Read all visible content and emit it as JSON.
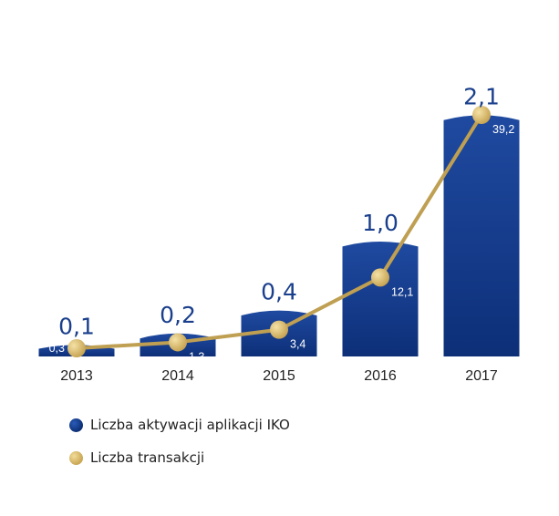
{
  "chart_data": {
    "type": "bar",
    "categories": [
      "2013",
      "2014",
      "2015",
      "2016",
      "2017"
    ],
    "series": [
      {
        "name": "Liczba aktywacji aplikacji IKO",
        "type": "bar",
        "values": [
          0.1,
          0.2,
          0.4,
          1.0,
          2.1
        ],
        "labels": [
          "0,1",
          "0,2",
          "0,4",
          "1,0",
          "2,1"
        ],
        "color": "#143b87"
      },
      {
        "name": "Liczba transakcji",
        "type": "line",
        "values": [
          0.3,
          1.3,
          3.4,
          12.1,
          39.2
        ],
        "labels": [
          "0,3",
          "1,3",
          "3,4",
          "12,1",
          "39,2"
        ],
        "color": "#bf9f52"
      }
    ],
    "legend_position": "bottom-left",
    "grid": false
  },
  "legend": {
    "bars_label": "Liczba aktywacji aplikacji IKO",
    "line_label": "Liczba transakcji"
  }
}
